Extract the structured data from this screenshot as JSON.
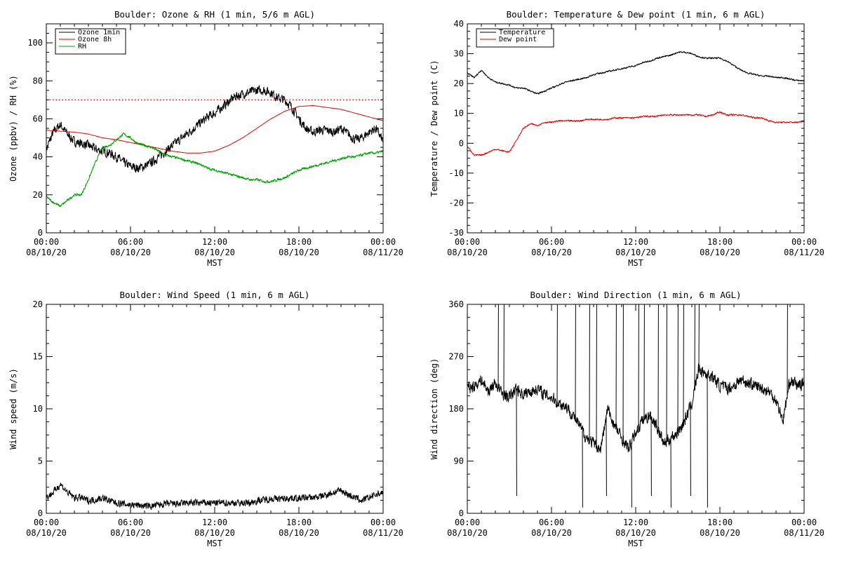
{
  "colors": {
    "ozone_1min": "#000000",
    "ozone_8h": "#e00000",
    "rh": "#00a000",
    "temperature": "#000000",
    "dew_point": "#e00000",
    "wind": "#000000",
    "threshold": "#e00000"
  },
  "time_ticks": [
    {
      "hour": 0,
      "time": "00:00",
      "date": "08/10/20"
    },
    {
      "hour": 6,
      "time": "06:00",
      "date": "08/10/20"
    },
    {
      "hour": 12,
      "time": "12:00",
      "date": "08/10/20"
    },
    {
      "hour": 18,
      "time": "18:00",
      "date": "08/10/20"
    },
    {
      "hour": 24,
      "time": "00:00",
      "date": "08/11/20"
    }
  ],
  "chart_data": [
    {
      "id": "ozone_rh",
      "type": "line",
      "title": "Boulder: Ozone & RH (1 min, 5/6 m AGL)",
      "xlabel": "MST",
      "ylabel": "Ozone (ppbv) / RH (%)",
      "xlim": [
        0,
        24
      ],
      "ylim": [
        0,
        110
      ],
      "yticks": [
        0,
        20,
        40,
        60,
        80,
        100
      ],
      "legend_position": "top-left",
      "threshold_line": {
        "y": 70,
        "style": "dotted",
        "color": "#e00000"
      },
      "series": [
        {
          "name": "Ozone 1min",
          "color": "#000000",
          "noise": 3.2,
          "x": [
            0,
            0.5,
            1,
            1.5,
            2,
            2.5,
            3,
            3.5,
            4,
            4.5,
            5,
            5.5,
            6,
            6.5,
            7,
            7.5,
            8,
            8.5,
            9,
            9.5,
            10,
            10.5,
            11,
            11.5,
            12,
            12.5,
            13,
            13.5,
            14,
            14.5,
            15,
            15.5,
            16,
            16.5,
            17,
            17.5,
            18,
            18.5,
            19,
            19.5,
            20,
            20.5,
            21,
            21.5,
            22,
            22.5,
            23,
            23.5,
            24
          ],
          "y": [
            44,
            53,
            57,
            52,
            48,
            47,
            46,
            44,
            43,
            42,
            40,
            37,
            35,
            34,
            35,
            37,
            40,
            43,
            46,
            49,
            52,
            55,
            58,
            61,
            63,
            66,
            69,
            72,
            73,
            74,
            75,
            75,
            74,
            71,
            70,
            66,
            60,
            55,
            53,
            54,
            54,
            53,
            55,
            52,
            49,
            50,
            53,
            55,
            48
          ]
        },
        {
          "name": "Ozone 8h",
          "color": "#e00000",
          "noise": 0,
          "x": [
            0,
            1,
            2,
            3,
            4,
            5,
            6,
            7,
            8,
            9,
            10,
            11,
            12,
            13,
            14,
            15,
            16,
            17,
            18,
            19,
            20,
            21,
            22,
            23,
            24
          ],
          "y": [
            54,
            53.5,
            53,
            52,
            50,
            49,
            47.5,
            46,
            44.5,
            43,
            42,
            42,
            43,
            46,
            50,
            55,
            60,
            64,
            66.5,
            67,
            66,
            65,
            63,
            61,
            59
          ]
        },
        {
          "name": "RH",
          "color": "#00a000",
          "noise": 0.9,
          "x": [
            0,
            0.5,
            1,
            1.5,
            2,
            2.5,
            3,
            3.5,
            4,
            4.5,
            5,
            5.5,
            6,
            6.5,
            7,
            7.5,
            8,
            8.5,
            9,
            9.5,
            10,
            10.5,
            11,
            11.5,
            12,
            12.5,
            13,
            13.5,
            14,
            14.5,
            15,
            15.5,
            16,
            16.5,
            17,
            17.5,
            18,
            18.5,
            19,
            19.5,
            20,
            20.5,
            21,
            21.5,
            22,
            22.5,
            23,
            23.5,
            24
          ],
          "y": [
            19,
            16,
            14,
            17,
            20,
            20,
            28,
            37,
            45,
            46,
            49,
            52,
            50,
            47,
            46,
            45,
            43,
            41,
            40,
            39,
            38,
            37,
            36,
            34,
            33,
            32,
            31,
            30,
            29,
            28,
            28,
            27,
            27,
            28,
            29,
            31,
            33,
            34,
            35,
            36,
            37,
            38,
            39,
            40,
            40,
            41,
            42,
            42,
            43
          ]
        }
      ]
    },
    {
      "id": "temp_dew",
      "type": "line",
      "title": "Boulder: Temperature & Dew point (1 min, 6 m AGL)",
      "xlabel": "MST",
      "ylabel": "Temperature / Dew point (C)",
      "xlim": [
        0,
        24
      ],
      "ylim": [
        -30,
        40
      ],
      "yticks": [
        -30,
        -20,
        -10,
        0,
        10,
        20,
        30,
        40
      ],
      "legend_position": "top-left",
      "series": [
        {
          "name": "Temperature",
          "color": "#000000",
          "noise": 0.35,
          "x": [
            0,
            0.5,
            1,
            1.5,
            2,
            2.5,
            3,
            3.5,
            4,
            4.5,
            5,
            5.5,
            6,
            6.5,
            7,
            7.5,
            8,
            8.5,
            9,
            9.5,
            10,
            10.5,
            11,
            11.5,
            12,
            12.5,
            13,
            13.5,
            14,
            14.5,
            15,
            15.5,
            16,
            16.5,
            17,
            17.5,
            18,
            18.5,
            19,
            19.5,
            20,
            20.5,
            21,
            21.5,
            22,
            22.5,
            23,
            23.5,
            24
          ],
          "y": [
            23.5,
            22,
            24.5,
            22,
            20.5,
            20,
            19.5,
            18.5,
            18.5,
            17.5,
            16.5,
            17.5,
            18.5,
            19.5,
            20.5,
            21,
            21.5,
            22,
            23,
            23.5,
            24,
            24.5,
            25,
            25.5,
            26,
            27,
            27.5,
            28.5,
            29,
            29.5,
            30.5,
            30.5,
            30,
            29,
            28.5,
            28.5,
            28.5,
            27.5,
            26,
            24.5,
            23.5,
            23,
            22.5,
            22.5,
            22,
            22,
            21.5,
            21,
            21
          ]
        },
        {
          "name": "Dew point",
          "color": "#e00000",
          "noise": 0.35,
          "x": [
            0,
            0.5,
            1,
            1.5,
            2,
            2.5,
            3,
            3.5,
            4,
            4.5,
            5,
            5.5,
            6,
            6.5,
            7,
            7.5,
            8,
            8.5,
            9,
            9.5,
            10,
            10.5,
            11,
            11.5,
            12,
            12.5,
            13,
            13.5,
            14,
            14.5,
            15,
            15.5,
            16,
            16.5,
            17,
            17.5,
            18,
            18.5,
            19,
            19.5,
            20,
            20.5,
            21,
            21.5,
            22,
            22.5,
            23,
            23.5,
            24
          ],
          "y": [
            -1,
            -4,
            -4,
            -3,
            -2,
            -2.5,
            -3,
            1,
            5,
            6.5,
            6,
            7,
            7,
            7.5,
            7.5,
            7.5,
            7.5,
            8,
            8,
            8,
            8,
            8.5,
            8.5,
            8.5,
            8.5,
            9,
            9,
            9,
            9.5,
            9.5,
            9.5,
            9.5,
            9.5,
            9.5,
            9,
            9.5,
            10.5,
            9.5,
            9.5,
            9.5,
            9,
            8.5,
            8.5,
            7.5,
            7,
            7,
            7,
            7,
            7.5
          ]
        }
      ]
    },
    {
      "id": "wind_speed",
      "type": "line",
      "title": "Boulder: Wind Speed (1 min, 6 m AGL)",
      "xlabel": "MST",
      "ylabel": "Wind speed (m/s)",
      "xlim": [
        0,
        24
      ],
      "ylim": [
        0,
        20
      ],
      "yticks": [
        0,
        5,
        10,
        15,
        20
      ],
      "series": [
        {
          "name": "",
          "color": "#000000",
          "noise": 0.45,
          "x": [
            0,
            0.5,
            1,
            1.5,
            2,
            2.5,
            3,
            3.5,
            4,
            4.5,
            5,
            5.5,
            6,
            6.5,
            7,
            7.5,
            8,
            8.5,
            9,
            9.5,
            10,
            10.5,
            11,
            11.5,
            12,
            12.5,
            13,
            13.5,
            14,
            14.5,
            15,
            15.5,
            16,
            16.5,
            17,
            17.5,
            18,
            18.5,
            19,
            19.5,
            20,
            20.5,
            21,
            21.5,
            22,
            22.5,
            23,
            23.5,
            24
          ],
          "y": [
            1.5,
            2,
            2.8,
            2,
            1.5,
            1.5,
            1.2,
            1.3,
            1.5,
            1.2,
            1,
            0.9,
            0.8,
            0.8,
            0.7,
            0.7,
            0.8,
            0.9,
            0.9,
            0.9,
            1,
            1,
            1,
            1,
            1,
            1,
            1,
            1,
            1,
            1,
            1.2,
            1.3,
            1.4,
            1.4,
            1.4,
            1.5,
            1.4,
            1.5,
            1.5,
            1.6,
            1.8,
            2,
            2.2,
            1.8,
            1.5,
            1.2,
            1.5,
            1.8,
            2
          ]
        }
      ]
    },
    {
      "id": "wind_dir",
      "type": "line",
      "title": "Boulder: Wind Direction (1 min, 6 m AGL)",
      "xlabel": "MST",
      "ylabel": "Wind direction (deg)",
      "xlim": [
        0,
        24
      ],
      "ylim": [
        0,
        360
      ],
      "yticks": [
        0,
        90,
        180,
        270,
        360
      ],
      "series": [
        {
          "name": "",
          "color": "#000000",
          "noise": 14,
          "x": [
            0,
            0.5,
            1,
            1.5,
            2,
            2.5,
            3,
            3.5,
            4,
            4.5,
            5,
            5.5,
            6,
            6.5,
            7,
            7.5,
            8,
            8.5,
            9,
            9.5,
            10,
            10.5,
            11,
            11.5,
            12,
            12.5,
            13,
            13.5,
            14,
            14.5,
            15,
            15.5,
            16,
            16.5,
            17,
            17.5,
            18,
            18.5,
            19,
            19.5,
            20,
            20.5,
            21,
            21.5,
            22,
            22.5,
            23,
            23.5,
            24
          ],
          "y": [
            215,
            220,
            230,
            210,
            225,
            205,
            200,
            215,
            205,
            210,
            215,
            205,
            200,
            190,
            185,
            170,
            150,
            130,
            120,
            110,
            180,
            150,
            130,
            110,
            140,
            160,
            170,
            150,
            120,
            130,
            140,
            160,
            190,
            250,
            240,
            235,
            220,
            215,
            220,
            230,
            225,
            220,
            215,
            210,
            195,
            160,
            230,
            220,
            225
          ]
        }
      ],
      "spikes": [
        2.2,
        2.6,
        3.5,
        6.4,
        7.7,
        8.2,
        8.7,
        9.2,
        9.9,
        10.6,
        11.1,
        11.7,
        12.2,
        12.6,
        13.1,
        13.6,
        14.2,
        14.5,
        15,
        15.4,
        15.9,
        16.2,
        16.5,
        17.1,
        22.8
      ]
    }
  ]
}
